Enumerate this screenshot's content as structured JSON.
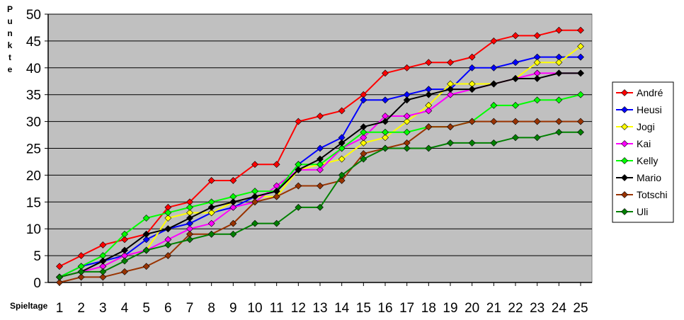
{
  "chart_data": {
    "type": "line",
    "xlabel": "Spieltage",
    "ylabel": "Punkte",
    "x": [
      1,
      2,
      3,
      4,
      5,
      6,
      7,
      8,
      9,
      10,
      11,
      12,
      13,
      14,
      15,
      16,
      17,
      18,
      19,
      20,
      21,
      22,
      23,
      24,
      25
    ],
    "ylim": [
      0,
      50
    ],
    "yticks": [
      0,
      5,
      10,
      15,
      20,
      25,
      30,
      35,
      40,
      45,
      50
    ],
    "grid": "horizontal",
    "legend_position": "right",
    "plot_background": "#c0c0c0",
    "series": [
      {
        "name": "André",
        "color": "#ff0000",
        "values": [
          3,
          5,
          7,
          8,
          9,
          14,
          15,
          19,
          19,
          22,
          22,
          30,
          31,
          32,
          35,
          39,
          40,
          41,
          41,
          42,
          45,
          46,
          46,
          47,
          47
        ]
      },
      {
        "name": "Heusi",
        "color": "#0000ff",
        "values": [
          1,
          3,
          4,
          5,
          8,
          10,
          11,
          13,
          14,
          16,
          17,
          22,
          25,
          27,
          34,
          34,
          35,
          36,
          36,
          40,
          40,
          41,
          42,
          42,
          42
        ]
      },
      {
        "name": "Jogi",
        "color": "#ffff00",
        "values": [
          1,
          2,
          3,
          5,
          6,
          12,
          13,
          13,
          15,
          16,
          16,
          21,
          22,
          23,
          26,
          27,
          30,
          33,
          37,
          37,
          37,
          38,
          41,
          41,
          44
        ]
      },
      {
        "name": "Kai",
        "color": "#ff00ff",
        "values": [
          1,
          2,
          3,
          5,
          6,
          8,
          10,
          11,
          14,
          15,
          18,
          21,
          21,
          25,
          27,
          31,
          31,
          32,
          35,
          36,
          37,
          38,
          39,
          39,
          39
        ]
      },
      {
        "name": "Kelly",
        "color": "#00ff00",
        "values": [
          1,
          3,
          5,
          9,
          12,
          13,
          14,
          15,
          16,
          17,
          17,
          22,
          22,
          25,
          28,
          28,
          28,
          29,
          29,
          30,
          33,
          33,
          34,
          34,
          35
        ]
      },
      {
        "name": "Mario",
        "color": "#000000",
        "values": [
          1,
          2,
          4,
          6,
          9,
          10,
          12,
          14,
          15,
          16,
          17,
          21,
          23,
          26,
          29,
          30,
          34,
          35,
          36,
          36,
          37,
          38,
          38,
          39,
          39
        ]
      },
      {
        "name": "Totschi",
        "color": "#993300",
        "values": [
          0,
          1,
          1,
          2,
          3,
          5,
          9,
          9,
          11,
          15,
          16,
          18,
          18,
          19,
          24,
          25,
          26,
          29,
          29,
          30,
          30,
          30,
          30,
          30,
          30
        ]
      },
      {
        "name": "Uli",
        "color": "#008000",
        "values": [
          1,
          2,
          2,
          4,
          6,
          7,
          8,
          9,
          9,
          11,
          11,
          14,
          14,
          20,
          23,
          25,
          25,
          25,
          26,
          26,
          26,
          27,
          27,
          28,
          28
        ]
      }
    ]
  }
}
